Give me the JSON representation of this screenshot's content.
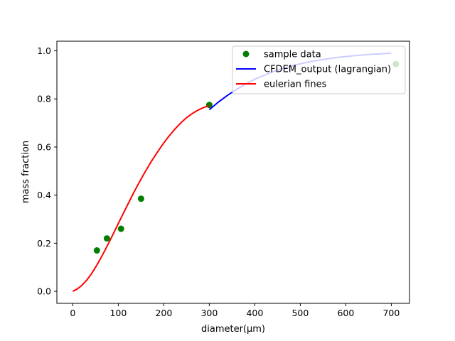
{
  "chart_data": {
    "type": "line",
    "title": "",
    "xlabel": "diameter(μm)",
    "ylabel": "mass fraction",
    "xlim": [
      -35,
      740
    ],
    "ylim": [
      -0.05,
      1.04
    ],
    "xticks": [
      0,
      100,
      200,
      300,
      400,
      500,
      600,
      700
    ],
    "yticks": [
      0.0,
      0.2,
      0.4,
      0.6,
      0.8,
      1.0
    ],
    "xtick_labels": [
      "0",
      "100",
      "200",
      "300",
      "400",
      "500",
      "600",
      "700"
    ],
    "ytick_labels": [
      "0.0",
      "0.2",
      "0.4",
      "0.6",
      "0.8",
      "1.0"
    ],
    "grid": false,
    "legend": {
      "position": "top-right",
      "entries": [
        {
          "label": "sample data",
          "color": "#008000",
          "kind": "marker"
        },
        {
          "label": "CFDEM_output (lagrangian)",
          "color": "#0000ff",
          "kind": "line"
        },
        {
          "label": "eulerian fines",
          "color": "#ff0000",
          "kind": "line"
        }
      ]
    },
    "series": [
      {
        "name": "sample data",
        "kind": "scatter",
        "color": "#008000",
        "x": [
          53,
          75,
          106,
          150,
          300,
          710
        ],
        "y": [
          0.17,
          0.22,
          0.26,
          0.385,
          0.775,
          0.945
        ]
      },
      {
        "name": "CFDEM_output (lagrangian)",
        "kind": "line",
        "color": "#0000ff",
        "x": [
          300,
          320,
          340,
          360,
          380,
          400,
          420,
          440,
          460,
          480,
          500,
          520,
          540,
          560,
          580,
          600,
          620,
          640,
          660,
          680,
          700
        ],
        "y": [
          0.755,
          0.787,
          0.815,
          0.84,
          0.862,
          0.882,
          0.898,
          0.913,
          0.926,
          0.937,
          0.946,
          0.954,
          0.961,
          0.967,
          0.972,
          0.976,
          0.98,
          0.983,
          0.986,
          0.988,
          0.99
        ]
      },
      {
        "name": "eulerian fines",
        "kind": "line",
        "color": "#ff0000",
        "x": [
          0,
          10,
          20,
          30,
          40,
          50,
          60,
          70,
          80,
          90,
          100,
          110,
          120,
          130,
          140,
          150,
          160,
          170,
          180,
          190,
          200,
          210,
          220,
          230,
          240,
          250,
          260,
          270,
          280,
          290,
          300
        ],
        "y": [
          0.0,
          0.01,
          0.025,
          0.045,
          0.07,
          0.1,
          0.133,
          0.168,
          0.205,
          0.243,
          0.282,
          0.32,
          0.358,
          0.396,
          0.432,
          0.467,
          0.5,
          0.532,
          0.562,
          0.59,
          0.617,
          0.642,
          0.665,
          0.686,
          0.705,
          0.722,
          0.736,
          0.748,
          0.758,
          0.766,
          0.772
        ]
      }
    ]
  }
}
